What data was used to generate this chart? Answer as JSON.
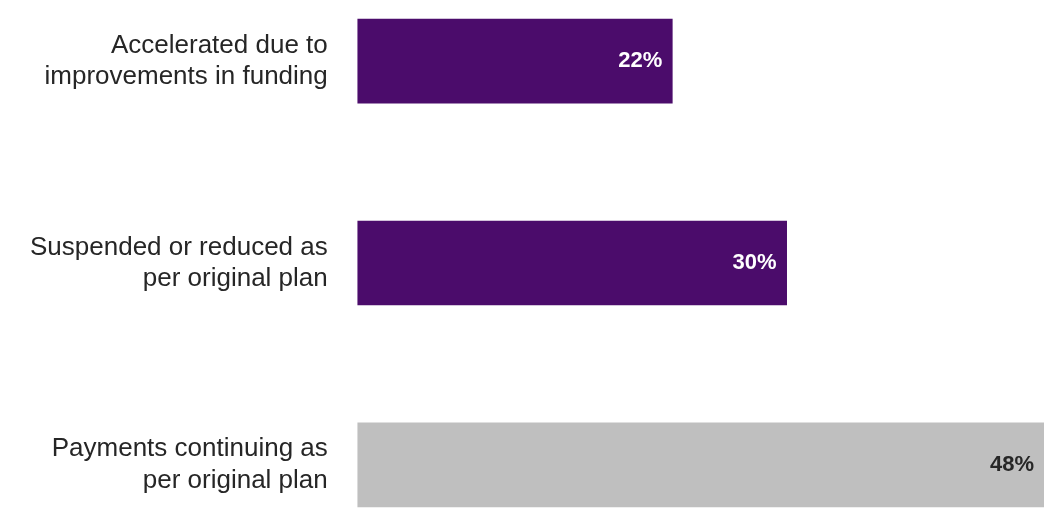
{
  "chart_data": {
    "type": "bar",
    "orientation": "horizontal",
    "categories": [
      "Accelerated due to improvements in funding",
      "Suspended or reduced as per original plan",
      "Payments continuing as per original plan"
    ],
    "values": [
      22,
      30,
      48
    ],
    "colors": [
      "#4b0c6b",
      "#4b0c6b",
      "#bfbfbf"
    ],
    "value_labels": [
      "22%",
      "30%",
      "48%"
    ]
  }
}
